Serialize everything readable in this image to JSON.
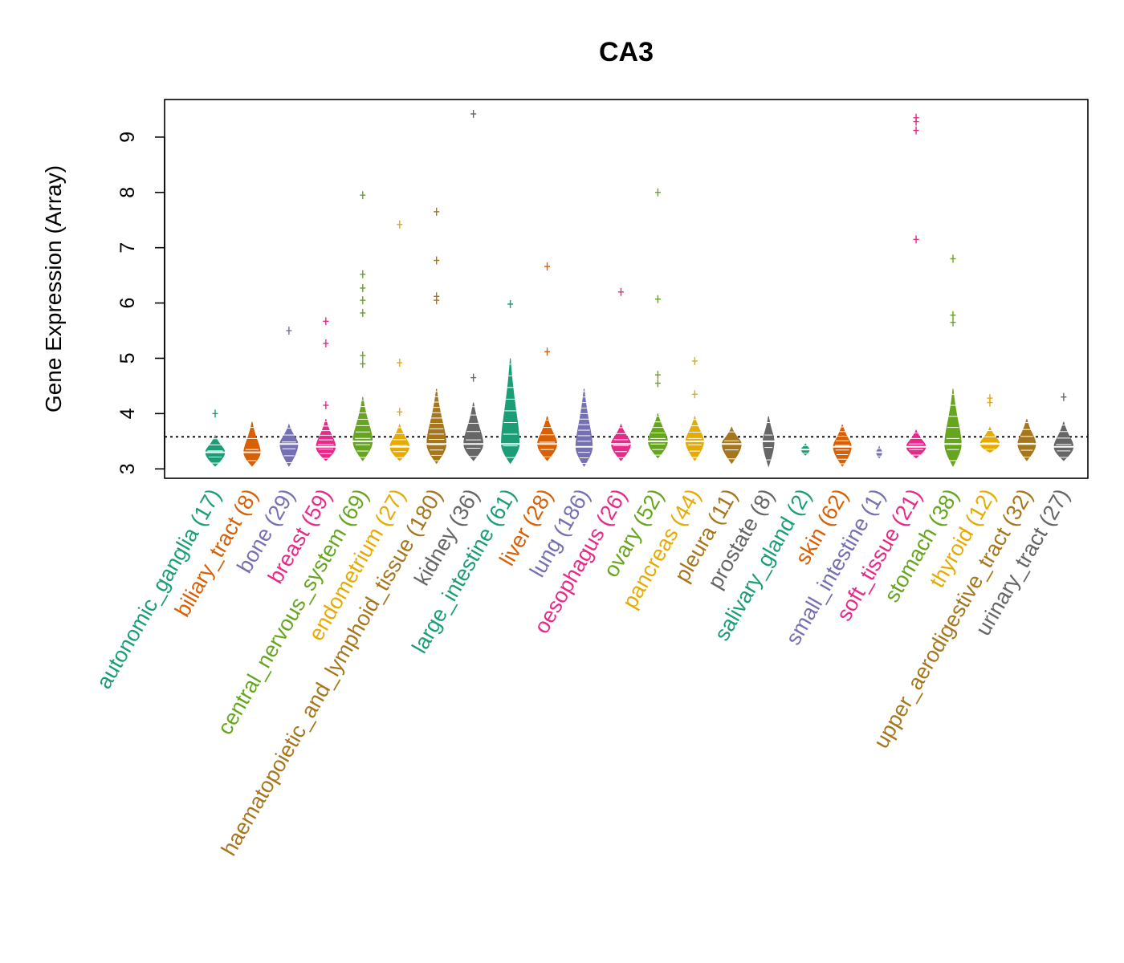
{
  "chart_data": {
    "type": "beanplot",
    "title": "CA3",
    "xlabel": "",
    "ylabel": "Gene Expression (Array)",
    "ylim": [
      2.83,
      9.68
    ],
    "yticks": [
      3,
      4,
      5,
      6,
      7,
      8,
      9
    ],
    "reference_line": 3.58,
    "categories": [
      {
        "name": "autonomic_ganglia",
        "n": 17,
        "label": "autonomic_ganglia (17)",
        "color": "#1B9E77",
        "median": 3.3,
        "low": 3.05,
        "high": 3.6,
        "width": 0.7,
        "outliers": [
          4.0
        ]
      },
      {
        "name": "biliary_tract",
        "n": 8,
        "label": "biliary_tract (8)",
        "color": "#D95F02",
        "median": 3.3,
        "low": 3.05,
        "high": 3.85,
        "width": 0.6,
        "outliers": []
      },
      {
        "name": "bone",
        "n": 29,
        "label": "bone (29)",
        "color": "#7570B3",
        "median": 3.45,
        "low": 3.05,
        "high": 3.8,
        "width": 0.65,
        "outliers": [
          5.5
        ]
      },
      {
        "name": "breast",
        "n": 59,
        "label": "breast (59)",
        "color": "#E7298A",
        "median": 3.4,
        "low": 3.15,
        "high": 3.9,
        "width": 0.7,
        "outliers": [
          4.15,
          5.27,
          5.67
        ]
      },
      {
        "name": "central_nervous_system",
        "n": 69,
        "label": "central_nervous_system (69)",
        "color": "#66A61E",
        "median": 3.5,
        "low": 3.15,
        "high": 4.3,
        "width": 0.7,
        "outliers": [
          4.9,
          5.05,
          5.82,
          6.05,
          6.27,
          6.52,
          7.95
        ]
      },
      {
        "name": "endometrium",
        "n": 27,
        "label": "endometrium (27)",
        "color": "#E6AB02",
        "median": 3.4,
        "low": 3.15,
        "high": 3.8,
        "width": 0.7,
        "outliers": [
          4.03,
          4.92,
          7.42
        ]
      },
      {
        "name": "haematopoietic_and_lymphoid_tissue",
        "n": 180,
        "label": "haematopoietic_and_lymphoid_tissue (180)",
        "color": "#A6761D",
        "median": 3.45,
        "low": 3.1,
        "high": 4.45,
        "width": 0.7,
        "outliers": [
          6.05,
          6.12,
          6.77,
          7.65
        ]
      },
      {
        "name": "kidney",
        "n": 36,
        "label": "kidney (36)",
        "color": "#666666",
        "median": 3.45,
        "low": 3.15,
        "high": 4.2,
        "width": 0.7,
        "outliers": [
          4.65,
          9.42
        ]
      },
      {
        "name": "large_intestine",
        "n": 61,
        "label": "large_intestine (61)",
        "color": "#1B9E77",
        "median": 3.45,
        "low": 3.1,
        "high": 5.0,
        "width": 0.65,
        "outliers": [
          5.98
        ]
      },
      {
        "name": "liver",
        "n": 28,
        "label": "liver (28)",
        "color": "#D95F02",
        "median": 3.45,
        "low": 3.15,
        "high": 3.95,
        "width": 0.7,
        "outliers": [
          5.12,
          6.66
        ]
      },
      {
        "name": "lung",
        "n": 186,
        "label": "lung (186)",
        "color": "#7570B3",
        "median": 3.4,
        "low": 3.05,
        "high": 4.45,
        "width": 0.6,
        "outliers": []
      },
      {
        "name": "oesophagus",
        "n": 26,
        "label": "oesophagus (26)",
        "color": "#E7298A",
        "median": 3.45,
        "low": 3.15,
        "high": 3.8,
        "width": 0.7,
        "outliers": [
          6.2
        ]
      },
      {
        "name": "ovary",
        "n": 52,
        "label": "ovary (52)",
        "color": "#66A61E",
        "median": 3.5,
        "low": 3.2,
        "high": 4.0,
        "width": 0.7,
        "outliers": [
          4.55,
          4.7,
          6.07,
          8.0
        ]
      },
      {
        "name": "pancreas",
        "n": 44,
        "label": "pancreas (44)",
        "color": "#E6AB02",
        "median": 3.5,
        "low": 3.15,
        "high": 3.95,
        "width": 0.65,
        "outliers": [
          4.35,
          4.95
        ]
      },
      {
        "name": "pleura",
        "n": 11,
        "label": "pleura (11)",
        "color": "#A6761D",
        "median": 3.45,
        "low": 3.1,
        "high": 3.75,
        "width": 0.7,
        "outliers": []
      },
      {
        "name": "prostate",
        "n": 8,
        "label": "prostate (8)",
        "color": "#666666",
        "median": 3.5,
        "low": 3.05,
        "high": 3.95,
        "width": 0.4,
        "outliers": []
      },
      {
        "name": "salivary_gland",
        "n": 2,
        "label": "salivary_gland (2)",
        "color": "#1B9E77",
        "median": 3.35,
        "low": 3.25,
        "high": 3.45,
        "width": 0.3,
        "outliers": []
      },
      {
        "name": "skin",
        "n": 62,
        "label": "skin (62)",
        "color": "#D95F02",
        "median": 3.4,
        "low": 3.05,
        "high": 3.8,
        "width": 0.65,
        "outliers": []
      },
      {
        "name": "small_intestine",
        "n": 1,
        "label": "small_intestine (1)",
        "color": "#7570B3",
        "median": 3.3,
        "low": 3.2,
        "high": 3.4,
        "width": 0.2,
        "outliers": []
      },
      {
        "name": "soft_tissue",
        "n": 21,
        "label": "soft_tissue (21)",
        "color": "#E7298A",
        "median": 3.4,
        "low": 3.2,
        "high": 3.7,
        "width": 0.7,
        "outliers": [
          7.15,
          9.12,
          9.28,
          9.35
        ]
      },
      {
        "name": "stomach",
        "n": 38,
        "label": "stomach (38)",
        "color": "#66A61E",
        "median": 3.45,
        "low": 3.05,
        "high": 4.45,
        "width": 0.6,
        "outliers": [
          5.65,
          5.78,
          6.8
        ]
      },
      {
        "name": "thyroid",
        "n": 12,
        "label": "thyroid (12)",
        "color": "#E6AB02",
        "median": 3.45,
        "low": 3.3,
        "high": 3.75,
        "width": 0.7,
        "outliers": [
          4.2,
          4.28
        ]
      },
      {
        "name": "upper_aerodigestive_tract",
        "n": 32,
        "label": "upper_aerodigestive_tract (32)",
        "color": "#A6761D",
        "median": 3.45,
        "low": 3.15,
        "high": 3.9,
        "width": 0.65,
        "outliers": []
      },
      {
        "name": "urinary_tract",
        "n": 27,
        "label": "urinary_tract (27)",
        "color": "#666666",
        "median": 3.4,
        "low": 3.15,
        "high": 3.85,
        "width": 0.7,
        "outliers": [
          4.3
        ]
      }
    ]
  }
}
